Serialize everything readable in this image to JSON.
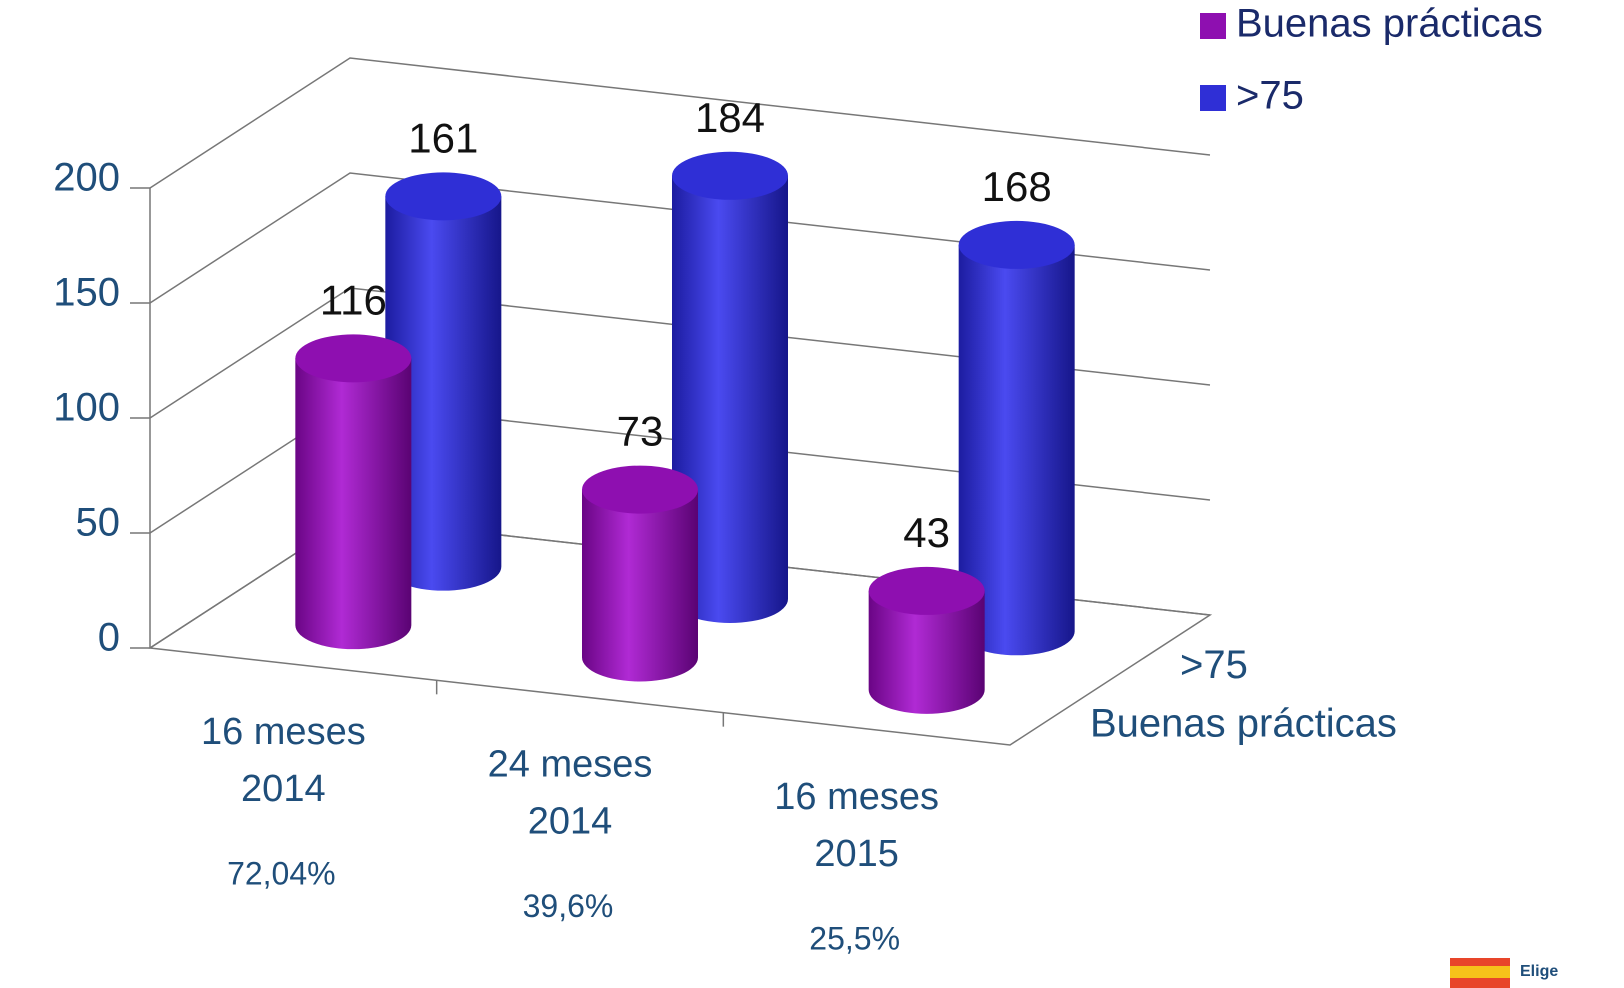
{
  "chart_data": {
    "type": "bar3d",
    "categories": [
      [
        "16 meses",
        "2014"
      ],
      [
        "24 meses",
        "2014"
      ],
      [
        "16 meses",
        "2015"
      ]
    ],
    "annotations": [
      "72,04%",
      "39,6%",
      "25,5%"
    ],
    "series": [
      {
        "name": "Buenas prácticas",
        "color": "#8e0fb0",
        "values": [
          116,
          73,
          43
        ]
      },
      {
        "name": ">75",
        "color": "#2f2fd6",
        "values": [
          161,
          184,
          168
        ]
      }
    ],
    "ylim": [
      0,
      200
    ],
    "yticks": [
      0,
      50,
      100,
      150,
      200
    ],
    "grid": true,
    "legend": "top-right",
    "logo": "Elige"
  }
}
